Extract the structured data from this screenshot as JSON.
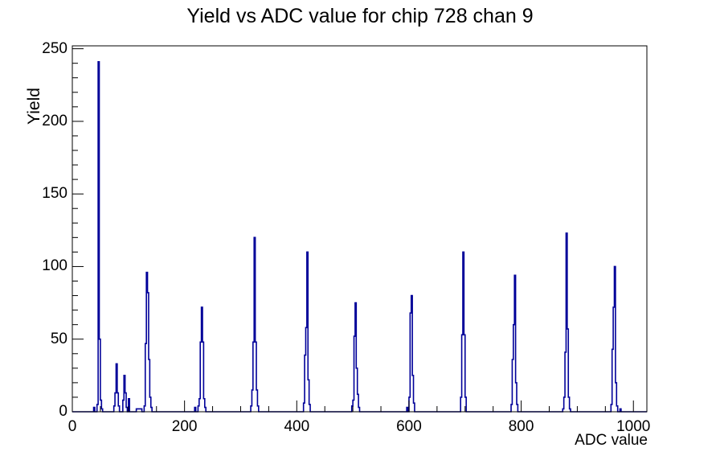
{
  "window": {
    "background": "#ffffff"
  },
  "chart_data": {
    "type": "bar",
    "title": "Yield vs ADC value for chip 728 chan 9",
    "xlabel": "ADC value",
    "ylabel": "Yield",
    "xlim": [
      0,
      1024
    ],
    "ylim": [
      0,
      252
    ],
    "x_major_ticks": [
      0,
      200,
      400,
      600,
      800,
      1000
    ],
    "x_tick_labels": [
      "0",
      "200",
      "400",
      "600",
      "800",
      "1000"
    ],
    "x_minor_step": 50,
    "y_major_ticks": [
      0,
      50,
      100,
      150,
      200,
      250
    ],
    "y_tick_labels": [
      "0",
      "50",
      "100",
      "150",
      "200",
      "250"
    ],
    "y_minor_step": 10,
    "grid": false,
    "legend": "none",
    "bin_width": 2,
    "line_color": "#000099",
    "frame_color": "#000000",
    "bins": [
      [
        38,
        3
      ],
      [
        44,
        5
      ],
      [
        46,
        241
      ],
      [
        48,
        50
      ],
      [
        50,
        8
      ],
      [
        52,
        2
      ],
      [
        74,
        4
      ],
      [
        76,
        13
      ],
      [
        78,
        33
      ],
      [
        80,
        13
      ],
      [
        82,
        4
      ],
      [
        90,
        8
      ],
      [
        92,
        25
      ],
      [
        94,
        13
      ],
      [
        96,
        3
      ],
      [
        100,
        9
      ],
      [
        114,
        2
      ],
      [
        116,
        2
      ],
      [
        118,
        2
      ],
      [
        120,
        2
      ],
      [
        122,
        2
      ],
      [
        128,
        4
      ],
      [
        130,
        47
      ],
      [
        132,
        96
      ],
      [
        134,
        82
      ],
      [
        136,
        36
      ],
      [
        138,
        10
      ],
      [
        140,
        3
      ],
      [
        218,
        3
      ],
      [
        224,
        4
      ],
      [
        226,
        9
      ],
      [
        228,
        48
      ],
      [
        230,
        72
      ],
      [
        232,
        48
      ],
      [
        234,
        9
      ],
      [
        236,
        3
      ],
      [
        318,
        4
      ],
      [
        320,
        15
      ],
      [
        322,
        48
      ],
      [
        324,
        120
      ],
      [
        326,
        48
      ],
      [
        328,
        15
      ],
      [
        330,
        4
      ],
      [
        412,
        6
      ],
      [
        414,
        39
      ],
      [
        416,
        58
      ],
      [
        418,
        110
      ],
      [
        420,
        22
      ],
      [
        422,
        5
      ],
      [
        498,
        4
      ],
      [
        500,
        8
      ],
      [
        502,
        52
      ],
      [
        504,
        75
      ],
      [
        506,
        30
      ],
      [
        508,
        12
      ],
      [
        510,
        3
      ],
      [
        596,
        3
      ],
      [
        600,
        10
      ],
      [
        602,
        68
      ],
      [
        604,
        80
      ],
      [
        606,
        25
      ],
      [
        608,
        6
      ],
      [
        692,
        10
      ],
      [
        694,
        53
      ],
      [
        696,
        110
      ],
      [
        698,
        53
      ],
      [
        700,
        10
      ],
      [
        782,
        5
      ],
      [
        784,
        36
      ],
      [
        786,
        60
      ],
      [
        788,
        94
      ],
      [
        790,
        20
      ],
      [
        792,
        5
      ],
      [
        874,
        2
      ],
      [
        876,
        10
      ],
      [
        878,
        41
      ],
      [
        880,
        123
      ],
      [
        882,
        57
      ],
      [
        884,
        10
      ],
      [
        886,
        2
      ],
      [
        960,
        5
      ],
      [
        962,
        43
      ],
      [
        964,
        72
      ],
      [
        966,
        100
      ],
      [
        968,
        20
      ],
      [
        970,
        4
      ],
      [
        976,
        2
      ]
    ]
  }
}
